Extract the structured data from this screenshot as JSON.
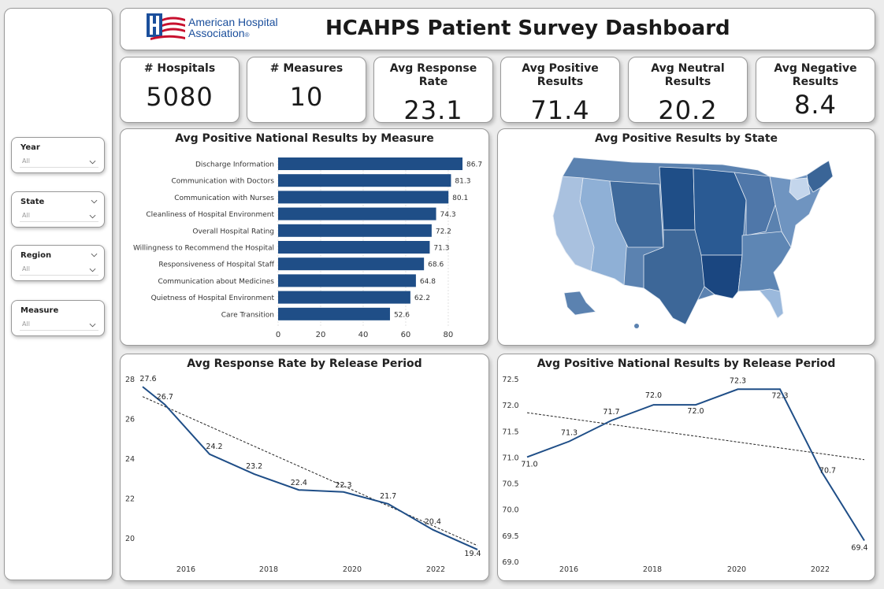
{
  "header": {
    "logo_line1": "American Hospital",
    "logo_line2": "Association",
    "title": "HCAHPS Patient Survey Dashboard"
  },
  "kpis": [
    {
      "label": "# Hospitals",
      "value": "5080"
    },
    {
      "label": "# Measures",
      "value": "10"
    },
    {
      "label": "Avg Response Rate",
      "value": "23.1"
    },
    {
      "label": "Avg Positive Results",
      "value": "71.4"
    },
    {
      "label": "Avg Neutral Results",
      "value": "20.2"
    },
    {
      "label": "Avg Negative Results",
      "value": "8.4"
    }
  ],
  "slicers": [
    {
      "label": "Year",
      "value": "All"
    },
    {
      "label": "State",
      "value": "All"
    },
    {
      "label": "Region",
      "value": "All"
    },
    {
      "label": "Measure",
      "value": "All"
    }
  ],
  "colors": {
    "bar": "#1f4e87",
    "line": "#1f4e87",
    "map_dark": "#1c4a7e",
    "map_light": "#c9d9ee"
  },
  "map": {
    "title": "Avg Positive Results by State"
  },
  "chart_data": [
    {
      "type": "bar",
      "title": "Avg Positive National Results by Measure",
      "categories": [
        "Discharge Information",
        "Communication with Doctors",
        "Communication with Nurses",
        "Cleanliness of Hospital Environment",
        "Overall Hospital Rating",
        "Willingness to Recommend the Hospital",
        "Responsiveness of Hospital Staff",
        "Communication about Medicines",
        "Quietness of Hospital Environment",
        "Care Transition"
      ],
      "values": [
        86.7,
        81.3,
        80.1,
        74.3,
        72.2,
        71.3,
        68.6,
        64.8,
        62.2,
        52.6
      ],
      "xticks": [
        "0",
        "20",
        "40",
        "60",
        "80"
      ],
      "xlim": [
        0,
        86.7
      ]
    },
    {
      "type": "line",
      "title": "Avg Response Rate by Release Period",
      "x": [
        2015,
        2015.5,
        2016.5,
        2017.5,
        2018.5,
        2019.5,
        2020.5,
        2021.5,
        2022.5
      ],
      "values": [
        27.6,
        26.7,
        24.2,
        23.2,
        22.4,
        22.3,
        21.7,
        20.4,
        19.4
      ],
      "labels": [
        "27.6",
        "26.7",
        "24.2",
        "23.2",
        "22.4",
        "22.3",
        "21.7",
        "20.4",
        "19.4"
      ],
      "trend": [
        27.1,
        19.6
      ],
      "xticks": [
        "2016",
        "2018",
        "2020",
        "2022"
      ],
      "yticks": [
        "20",
        "22",
        "24",
        "26",
        "28"
      ],
      "ylim": [
        19.0,
        28.0
      ],
      "xlim": [
        2015,
        2022.5
      ]
    },
    {
      "type": "line",
      "title": "Avg Positive National Results by Release Period",
      "x": [
        2015,
        2016,
        2017,
        2018,
        2019,
        2020,
        2021,
        2022,
        2023
      ],
      "values": [
        71.0,
        71.3,
        71.7,
        72.0,
        72.0,
        72.3,
        72.3,
        70.7,
        69.4
      ],
      "labels": [
        "71.0",
        "71.3",
        "71.7",
        "72.0",
        "72.0",
        "72.3",
        "72.3",
        "70.7",
        "69.4"
      ],
      "trend": [
        71.85,
        70.95
      ],
      "xticks": [
        "2016",
        "2018",
        "2020",
        "2022"
      ],
      "yticks": [
        "69.0",
        "69.5",
        "70.0",
        "70.5",
        "71.0",
        "71.5",
        "72.0",
        "72.5"
      ],
      "ylim": [
        69.0,
        72.5
      ],
      "xlim": [
        2015,
        2023
      ]
    }
  ]
}
